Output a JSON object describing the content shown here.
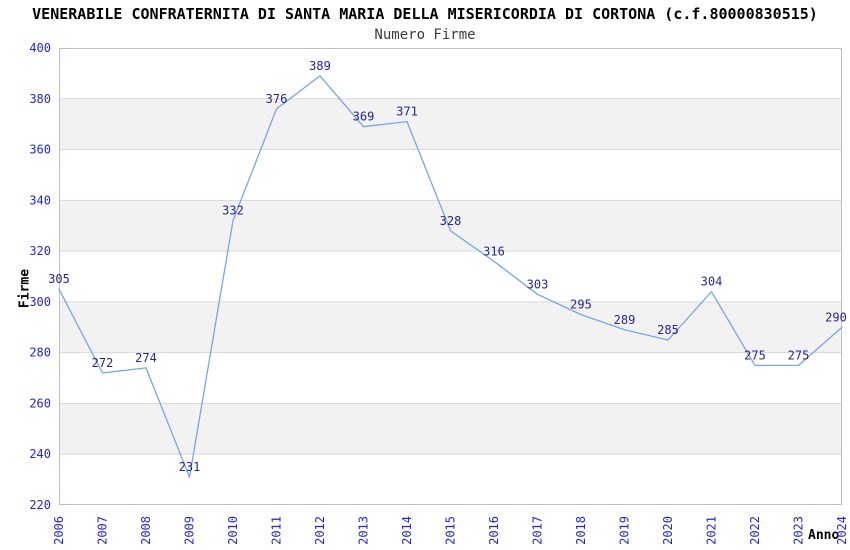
{
  "header": {
    "title": "VENERABILE CONFRATERNITA DI SANTA MARIA DELLA MISERICORDIA DI CORTONA (c.f.80000830515)",
    "subtitle": "Numero Firme"
  },
  "chart_data": {
    "type": "line",
    "title": "VENERABILE CONFRATERNITA DI SANTA MARIA DELLA MISERICORDIA DI CORTONA (c.f.80000830515)",
    "subtitle": "Numero Firme",
    "x": [
      2006,
      2007,
      2008,
      2009,
      2010,
      2011,
      2012,
      2013,
      2014,
      2015,
      2016,
      2017,
      2018,
      2019,
      2020,
      2021,
      2022,
      2023,
      2024
    ],
    "values": [
      305,
      272,
      274,
      231,
      332,
      376,
      389,
      369,
      371,
      328,
      316,
      303,
      295,
      289,
      285,
      304,
      275,
      275,
      290
    ],
    "xlabel": "Anno",
    "ylabel": "Firme",
    "ylim": [
      220,
      400
    ],
    "ytick_step": 20,
    "yticks": [
      220,
      240,
      260,
      280,
      300,
      320,
      340,
      360,
      380,
      400
    ],
    "grid": "horizontal gridlines with alternating gray bands",
    "legend": "none",
    "point_labels_shown": true,
    "colors": {
      "line": "#78a6e4",
      "tick_label": "#2626d4",
      "data_label": "#26268c",
      "band": "#f2f2f2",
      "gridline": "#d9d9d9",
      "border": "#c0c0c0",
      "plot_background": "#ffffff"
    }
  }
}
